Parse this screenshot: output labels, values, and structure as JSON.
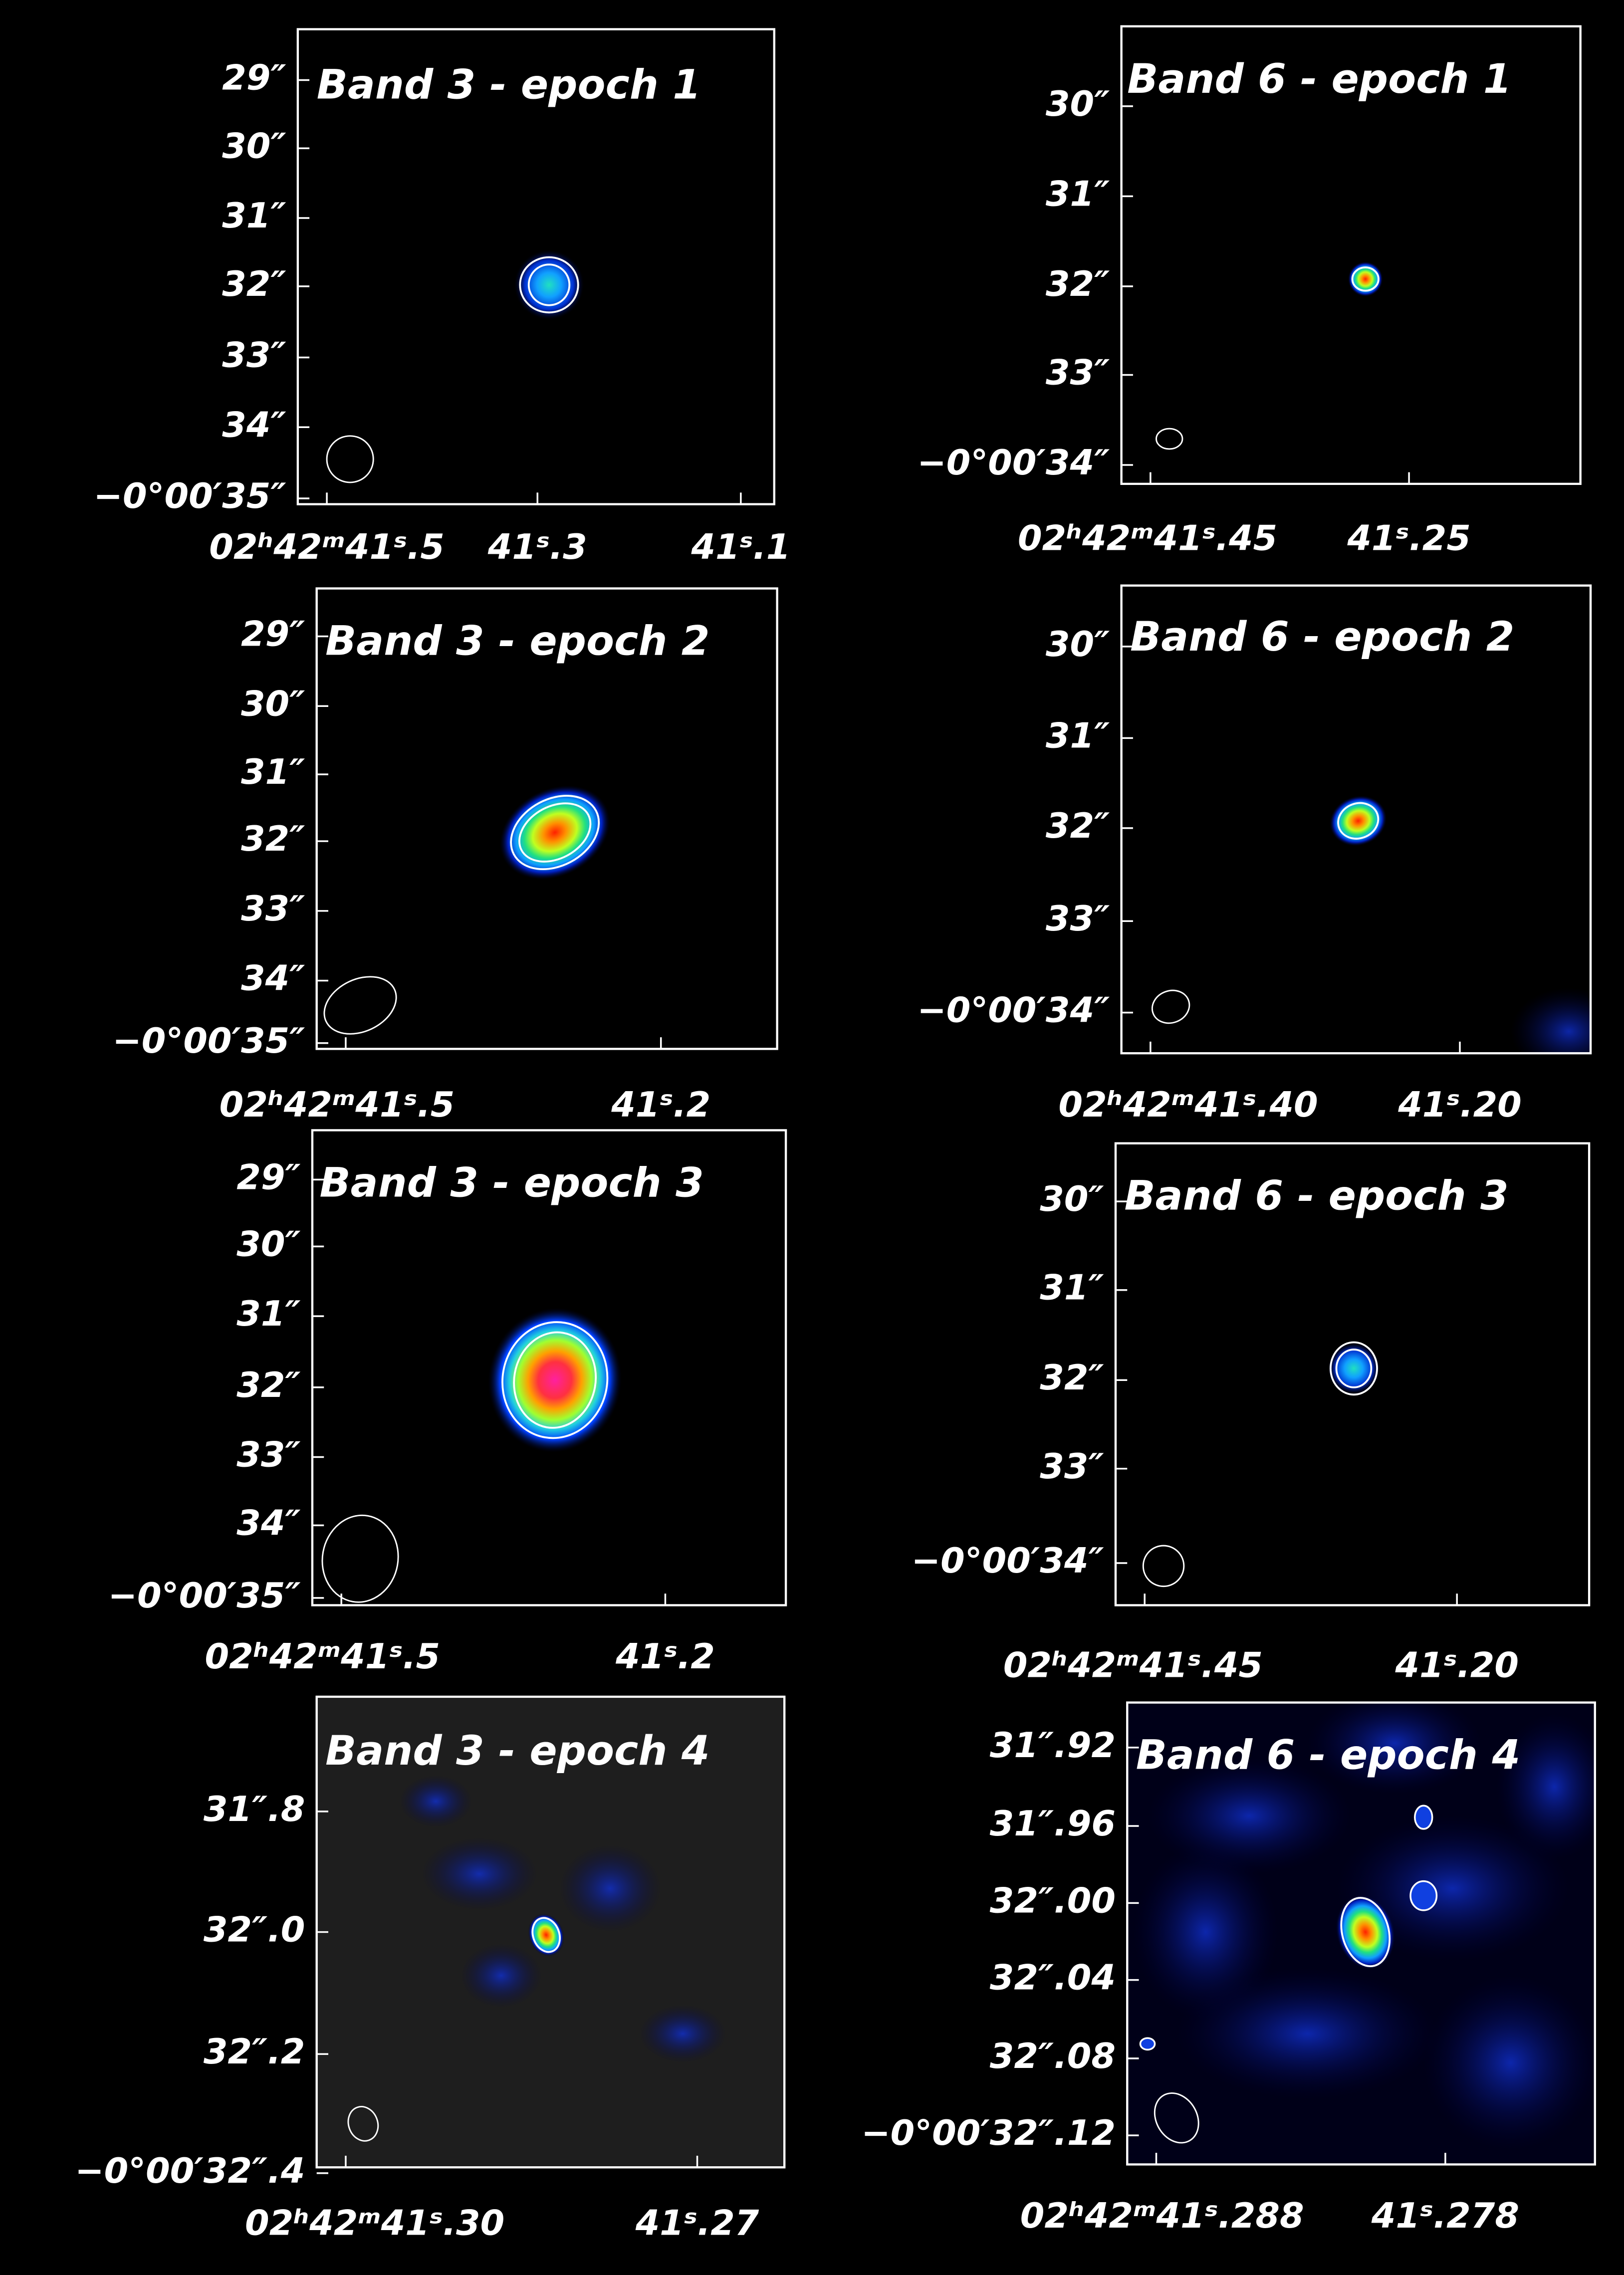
{
  "panels": [
    {
      "title": "Band 3 - epoch 1",
      "y_labels": [
        "29″",
        "30″",
        "31″",
        "32″",
        "33″",
        "34″",
        "−0°00′35″"
      ],
      "x_labels": [
        "02ʰ42ᵐ41ˢ.5",
        "41ˢ.3",
        "41ˢ.1"
      ]
    },
    {
      "title": "Band 3 - epoch 2",
      "y_labels": [
        "29″",
        "30″",
        "31″",
        "32″",
        "33″",
        "34″",
        "−0°00′35″"
      ],
      "x_labels": [
        "02ʰ42ᵐ41ˢ.5",
        "41ˢ.2"
      ]
    },
    {
      "title": "Band 3 - epoch 3",
      "y_labels": [
        "29″",
        "30″",
        "31″",
        "32″",
        "33″",
        "34″",
        "−0°00′35″"
      ],
      "x_labels": [
        "02ʰ42ᵐ41ˢ.5",
        "41ˢ.2"
      ]
    },
    {
      "title": "Band 3 - epoch 4",
      "y_labels": [
        "31″.8",
        "32″.0",
        "32″.2",
        "−0°00′32″.4"
      ],
      "x_labels": [
        "02ʰ42ᵐ41ˢ.30",
        "41ˢ.27"
      ]
    },
    {
      "title": "Band 6 - epoch 1",
      "y_labels": [
        "30″",
        "31″",
        "32″",
        "33″",
        "−0°00′34″"
      ],
      "x_labels": [
        "02ʰ42ᵐ41ˢ.45",
        "41ˢ.25"
      ]
    },
    {
      "title": "Band 6 - epoch 2",
      "y_labels": [
        "30″",
        "31″",
        "32″",
        "33″",
        "−0°00′34″"
      ],
      "x_labels": [
        "02ʰ42ᵐ41ˢ.40",
        "41ˢ.20"
      ]
    },
    {
      "title": "Band 6 - epoch 3",
      "y_labels": [
        "30″",
        "31″",
        "32″",
        "33″",
        "−0°00′34″"
      ],
      "x_labels": [
        "02ʰ42ᵐ41ˢ.45",
        "41ˢ.20"
      ]
    },
    {
      "title": "Band 6 - epoch 4",
      "y_labels": [
        "31″.92",
        "31″.96",
        "32″.00",
        "32″.04",
        "32″.08",
        "−0°00′32″.12"
      ],
      "x_labels": [
        "02ʰ42ᵐ41ˢ.288",
        "41ˢ.278"
      ]
    }
  ]
}
